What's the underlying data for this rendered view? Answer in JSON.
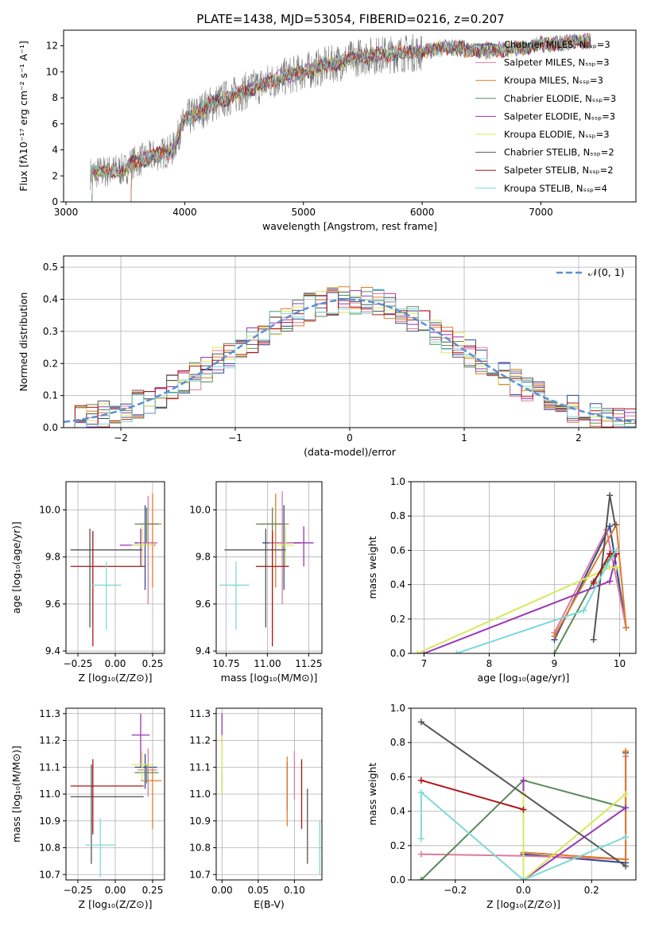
{
  "figure": {
    "title": "PLATE=1438, MJD=53054, FIBERID=0216, z=0.207",
    "colors": {
      "chabrier_miles": "#2a4d8f",
      "salpeter_miles": "#e07a9a",
      "kroupa_miles": "#e07b2a",
      "chabrier_elodie": "#5a8a5a",
      "salpeter_elodie": "#9a35b5",
      "kroupa_elodie": "#d8e85a",
      "chabrier_stelib": "#555555",
      "salpeter_stelib": "#b01414",
      "kroupa_stelib": "#7fd8d8",
      "data": "#808080",
      "normal": "#5a8fd6"
    }
  },
  "chart_data": [
    {
      "id": "spectrum",
      "type": "line",
      "xlabel": "wavelength [Angstrom, rest frame]",
      "ylabel": "Flux [fλ10⁻¹⁷ erg cm⁻² s⁻¹ A⁻¹]",
      "xlim": [
        2980,
        7800
      ],
      "ylim": [
        0,
        13.2
      ],
      "xticks": [
        3000,
        4000,
        5000,
        6000,
        7000
      ],
      "yticks": [
        0,
        2,
        4,
        6,
        8,
        10,
        12
      ],
      "legend_location": "right",
      "legend": [
        "Chabrier MILES, Nₛₛₚ=3",
        "Salpeter MILES, Nₛₛₚ=3",
        "Kroupa MILES, Nₛₛₚ=3",
        "Chabrier ELODIE, Nₛₛₚ=3",
        "Salpeter ELODIE, Nₛₛₚ=3",
        "Kroupa ELODIE, Nₛₛₚ=3",
        "Chabrier STELIB, Nₛₛₚ=2",
        "Salpeter STELIB, Nₛₛₚ=2",
        "Kroupa STELIB, Nₛₛₚ=4"
      ],
      "continuum_x": [
        3200,
        3500,
        3550,
        3900,
        3950,
        4000,
        4100,
        4200,
        4500,
        4800,
        5000,
        5200,
        5500,
        5800,
        6000,
        6200,
        6500,
        6800,
        7000,
        7200,
        7400
      ],
      "continuum_y": [
        2.2,
        2.5,
        3.0,
        4.0,
        5.2,
        6.3,
        6.8,
        7.4,
        8.5,
        9.5,
        10.0,
        10.5,
        11.2,
        11.4,
        11.5,
        11.9,
        11.6,
        11.8,
        12.1,
        12.2,
        12.4
      ]
    },
    {
      "id": "residuals",
      "type": "histogram",
      "xlabel": "(data-model)/error",
      "ylabel": "Normed distribution",
      "xlim": [
        -2.5,
        2.5
      ],
      "ylim": [
        0,
        0.535
      ],
      "xticks": [
        -2,
        -1,
        0,
        1,
        2
      ],
      "yticks": [
        0.0,
        0.1,
        0.2,
        0.3,
        0.4,
        0.5
      ],
      "legend": [
        "𝒩(0, 1)"
      ],
      "legend_location": "upper right",
      "bin_width": 0.1,
      "bin_start": -2.5
    },
    {
      "id": "age_vs_Z",
      "type": "errorbar",
      "xlabel": "Z [log₁₀(Z/Z⊙)]",
      "ylabel": "age  [log₁₀(age/yr)]",
      "xlim": [
        -0.33,
        0.33
      ],
      "ylim": [
        9.39,
        10.12
      ],
      "xticks": [
        -0.25,
        0.0,
        0.25
      ],
      "yticks": [
        9.4,
        9.6,
        9.8,
        10.0
      ],
      "points": [
        {
          "model": "chabrier_miles",
          "x": 0.2,
          "xerr": [
            0.07,
            0.08
          ],
          "y": 9.86,
          "yerr": [
            0.2,
            0.16
          ]
        },
        {
          "model": "salpeter_miles",
          "x": 0.22,
          "xerr": [
            0.07,
            0.06
          ],
          "y": 9.86,
          "yerr": [
            0.26,
            0.2
          ]
        },
        {
          "model": "kroupa_miles",
          "x": 0.25,
          "xerr": [
            0.08,
            0.06
          ],
          "y": 9.94,
          "yerr": [
            0.27,
            0.13
          ]
        },
        {
          "model": "chabrier_elodie",
          "x": 0.21,
          "xerr": [
            0.08,
            0.08
          ],
          "y": 9.94,
          "yerr": [
            0.08,
            0.07
          ]
        },
        {
          "model": "salpeter_elodie",
          "x": 0.17,
          "xerr": [
            0.14,
            0.1
          ],
          "y": 9.85,
          "yerr": [
            0.09,
            0.07
          ]
        },
        {
          "model": "kroupa_elodie",
          "x": 0.18,
          "xerr": [
            0.07,
            0.08
          ],
          "y": 9.85,
          "yerr": [
            0.09,
            0.08
          ]
        },
        {
          "model": "chabrier_stelib",
          "x": -0.17,
          "xerr": [
            0.13,
            0.35
          ],
          "y": 9.83,
          "yerr": [
            0.33,
            0.09
          ]
        },
        {
          "model": "salpeter_stelib",
          "x": -0.15,
          "xerr": [
            0.15,
            0.35
          ],
          "y": 9.76,
          "yerr": [
            0.34,
            0.15
          ]
        },
        {
          "model": "kroupa_stelib",
          "x": -0.06,
          "xerr": [
            0.1,
            0.1
          ],
          "y": 9.68,
          "yerr": [
            0.19,
            0.1
          ]
        }
      ]
    },
    {
      "id": "age_vs_mass",
      "type": "errorbar",
      "xlabel": "mass [log₁₀(M/M⊙)]",
      "ylabel": "",
      "xlim": [
        10.69,
        11.33
      ],
      "ylim": [
        9.39,
        10.12
      ],
      "xticks": [
        10.75,
        11.0,
        11.25
      ],
      "yticks": [
        9.4,
        9.6,
        9.8,
        10.0
      ],
      "points": [
        {
          "model": "chabrier_miles",
          "x": 11.1,
          "xerr": [
            0.13,
            0.1
          ],
          "y": 9.86,
          "yerr": [
            0.2,
            0.16
          ]
        },
        {
          "model": "salpeter_miles",
          "x": 11.09,
          "xerr": [
            0.08,
            0.08
          ],
          "y": 9.86,
          "yerr": [
            0.26,
            0.22
          ]
        },
        {
          "model": "kroupa_miles",
          "x": 11.05,
          "xerr": [
            0.1,
            0.08
          ],
          "y": 9.94,
          "yerr": [
            0.27,
            0.13
          ]
        },
        {
          "model": "chabrier_elodie",
          "x": 11.03,
          "xerr": [
            0.1,
            0.08
          ],
          "y": 9.94,
          "yerr": [
            0.08,
            0.07
          ]
        },
        {
          "model": "salpeter_elodie",
          "x": 11.22,
          "xerr": [
            0.06,
            0.06
          ],
          "y": 9.86,
          "yerr": [
            0.1,
            0.07
          ]
        },
        {
          "model": "kroupa_elodie",
          "x": 11.11,
          "xerr": [
            0.05,
            0.05
          ],
          "y": 9.85,
          "yerr": [
            0.09,
            0.08
          ]
        },
        {
          "model": "chabrier_stelib",
          "x": 10.99,
          "xerr": [
            0.25,
            0.12
          ],
          "y": 9.83,
          "yerr": [
            0.33,
            0.09
          ]
        },
        {
          "model": "salpeter_stelib",
          "x": 11.03,
          "xerr": [
            0.1,
            0.1
          ],
          "y": 9.76,
          "yerr": [
            0.34,
            0.15
          ]
        },
        {
          "model": "kroupa_stelib",
          "x": 10.81,
          "xerr": [
            0.1,
            0.08
          ],
          "y": 9.68,
          "yerr": [
            0.19,
            0.1
          ]
        }
      ]
    },
    {
      "id": "weights_vs_age",
      "type": "line",
      "xlabel": "age  [log₁₀(age/yr)]",
      "ylabel": "mass weight",
      "xlim": [
        6.8,
        10.25
      ],
      "ylim": [
        0,
        1
      ],
      "xticks": [
        7,
        8,
        9,
        10
      ],
      "yticks": [
        0.0,
        0.2,
        0.4,
        0.6,
        0.8,
        1.0
      ],
      "series": [
        {
          "model": "chabrier_miles",
          "x": [
            9.0,
            9.85,
            10.1
          ],
          "y": [
            0.08,
            0.74,
            0.15
          ]
        },
        {
          "model": "salpeter_miles",
          "x": [
            9.0,
            9.8,
            10.1
          ],
          "y": [
            0.12,
            0.72,
            0.15
          ]
        },
        {
          "model": "kroupa_miles",
          "x": [
            9.0,
            9.95,
            10.1
          ],
          "y": [
            0.1,
            0.75,
            0.15
          ]
        },
        {
          "model": "chabrier_elodie",
          "x": [
            9.0,
            9.6,
            9.9
          ],
          "y": [
            0.0,
            0.42,
            0.58
          ]
        },
        {
          "model": "salpeter_elodie",
          "x": [
            7.0,
            9.85,
            9.95
          ],
          "y": [
            0.0,
            0.42,
            0.58
          ]
        },
        {
          "model": "kroupa_elodie",
          "x": [
            6.9,
            9.85,
            9.95
          ],
          "y": [
            0.0,
            0.5,
            0.5
          ]
        },
        {
          "model": "chabrier_stelib",
          "x": [
            9.6,
            9.85,
            9.93
          ],
          "y": [
            0.08,
            0.92,
            0.75
          ]
        },
        {
          "model": "salpeter_stelib",
          "x": [
            9.6,
            9.85,
            9.95
          ],
          "y": [
            0.41,
            0.58,
            0.58
          ]
        },
        {
          "model": "kroupa_stelib",
          "x": [
            7.5,
            9.45,
            9.8,
            9.95
          ],
          "y": [
            0.0,
            0.25,
            0.51,
            0.6
          ]
        }
      ]
    },
    {
      "id": "mass_vs_Z",
      "type": "errorbar",
      "xlabel": "Z [log₁₀(Z/Z⊙)]",
      "ylabel": "mass [log₁₀(M/M⊙)]",
      "xlim": [
        -0.33,
        0.33
      ],
      "ylim": [
        10.68,
        11.32
      ],
      "xticks": [
        -0.25,
        0.0,
        0.25
      ],
      "yticks": [
        10.7,
        10.8,
        10.9,
        11.0,
        11.1,
        11.2,
        11.3
      ],
      "points": [
        {
          "model": "chabrier_miles",
          "x": 0.2,
          "xerr": [
            0.07,
            0.08
          ],
          "y": 11.1,
          "yerr": [
            0.08,
            0.05
          ]
        },
        {
          "model": "salpeter_miles",
          "x": 0.22,
          "xerr": [
            0.07,
            0.06
          ],
          "y": 11.09,
          "yerr": [
            0.1,
            0.08
          ]
        },
        {
          "model": "kroupa_miles",
          "x": 0.25,
          "xerr": [
            0.08,
            0.06
          ],
          "y": 11.05,
          "yerr": [
            0.18,
            0.05
          ]
        },
        {
          "model": "chabrier_elodie",
          "x": 0.21,
          "xerr": [
            0.08,
            0.08
          ],
          "y": 11.08,
          "yerr": [
            0.04,
            0.03
          ]
        },
        {
          "model": "salpeter_elodie",
          "x": 0.17,
          "xerr": [
            0.06,
            0.06
          ],
          "y": 11.22,
          "yerr": [
            0.12,
            0.08
          ]
        },
        {
          "model": "kroupa_elodie",
          "x": 0.18,
          "xerr": [
            0.07,
            0.08
          ],
          "y": 11.11,
          "yerr": [
            0.06,
            0.05
          ]
        },
        {
          "model": "chabrier_stelib",
          "x": -0.16,
          "xerr": [
            0.14,
            0.35
          ],
          "y": 10.99,
          "yerr": [
            0.25,
            0.12
          ]
        },
        {
          "model": "salpeter_stelib",
          "x": -0.15,
          "xerr": [
            0.15,
            0.34
          ],
          "y": 11.03,
          "yerr": [
            0.18,
            0.1
          ]
        },
        {
          "model": "kroupa_stelib",
          "x": -0.1,
          "xerr": [
            0.1,
            0.1
          ],
          "y": 10.81,
          "yerr": [
            0.12,
            0.1
          ]
        }
      ]
    },
    {
      "id": "mass_vs_ebv",
      "type": "errorbar",
      "xlabel": "E(B-V)",
      "ylabel": "",
      "xlim": [
        -0.008,
        0.138
      ],
      "ylim": [
        10.68,
        11.32
      ],
      "xticks": [
        0.0,
        0.05,
        0.1
      ],
      "yticks": [
        10.7,
        10.8,
        10.9,
        11.0,
        11.1,
        11.2,
        11.3
      ],
      "points": [
        {
          "model": "chabrier_miles",
          "x": 0.09,
          "y": 11.02,
          "yerr": [
            0.08,
            0.1
          ]
        },
        {
          "model": "salpeter_miles",
          "x": 0.1,
          "y": 11.08,
          "yerr": [
            0.1,
            0.08
          ]
        },
        {
          "model": "kroupa_miles",
          "x": 0.09,
          "y": 11.0,
          "yerr": [
            0.12,
            0.14
          ]
        },
        {
          "model": "chabrier_elodie",
          "x": 0.0,
          "y": 11.05,
          "yerr": [
            0.04,
            0.04
          ]
        },
        {
          "model": "salpeter_elodie",
          "x": 0.0,
          "y": 11.25,
          "yerr": [
            0.06,
            0.05
          ]
        },
        {
          "model": "kroupa_elodie",
          "x": 0.0,
          "y": 11.1,
          "yerr": [
            0.1,
            0.12
          ]
        },
        {
          "model": "chabrier_stelib",
          "x": 0.118,
          "y": 10.88,
          "yerr": [
            0.14,
            0.14
          ]
        },
        {
          "model": "salpeter_stelib",
          "x": 0.11,
          "y": 10.99,
          "yerr": [
            0.12,
            0.14
          ]
        },
        {
          "model": "kroupa_stelib",
          "x": 0.135,
          "y": 10.8,
          "yerr": [
            0.1,
            0.1
          ]
        }
      ]
    },
    {
      "id": "weights_vs_Z",
      "type": "line",
      "xlabel": "Z [log₁₀(Z/Z⊙)]",
      "ylabel": "mass weight",
      "xlim": [
        -0.33,
        0.33
      ],
      "ylim": [
        0,
        1
      ],
      "xticks": [
        -0.2,
        0.0,
        0.2
      ],
      "yticks": [
        0.0,
        0.2,
        0.4,
        0.6,
        0.8,
        1.0
      ],
      "series": [
        {
          "model": "chabrier_miles",
          "x": [
            0.0,
            0.3,
            0.3
          ],
          "y": [
            0.15,
            0.1,
            0.74
          ]
        },
        {
          "model": "salpeter_miles",
          "x": [
            -0.3,
            0.0,
            0.3,
            0.3
          ],
          "y": [
            0.15,
            0.14,
            0.12,
            0.72
          ]
        },
        {
          "model": "kroupa_miles",
          "x": [
            0.0,
            0.3,
            0.3
          ],
          "y": [
            0.16,
            0.12,
            0.75
          ]
        },
        {
          "model": "chabrier_elodie",
          "x": [
            -0.3,
            0.0,
            0.3
          ],
          "y": [
            0.0,
            0.58,
            0.42
          ]
        },
        {
          "model": "salpeter_elodie",
          "x": [
            0.0,
            0.0,
            0.3
          ],
          "y": [
            0.58,
            0.0,
            0.42
          ]
        },
        {
          "model": "kroupa_elodie",
          "x": [
            0.0,
            0.0,
            0.3
          ],
          "y": [
            0.5,
            0.0,
            0.5
          ]
        },
        {
          "model": "chabrier_stelib",
          "x": [
            -0.3,
            0.3
          ],
          "y": [
            0.92,
            0.08
          ]
        },
        {
          "model": "salpeter_stelib",
          "x": [
            -0.3,
            0.0
          ],
          "y": [
            0.58,
            0.41
          ]
        },
        {
          "model": "kroupa_stelib",
          "x": [
            -0.3,
            -0.3,
            0.0,
            0.3
          ],
          "y": [
            0.24,
            0.51,
            0.0,
            0.25
          ]
        }
      ]
    }
  ]
}
